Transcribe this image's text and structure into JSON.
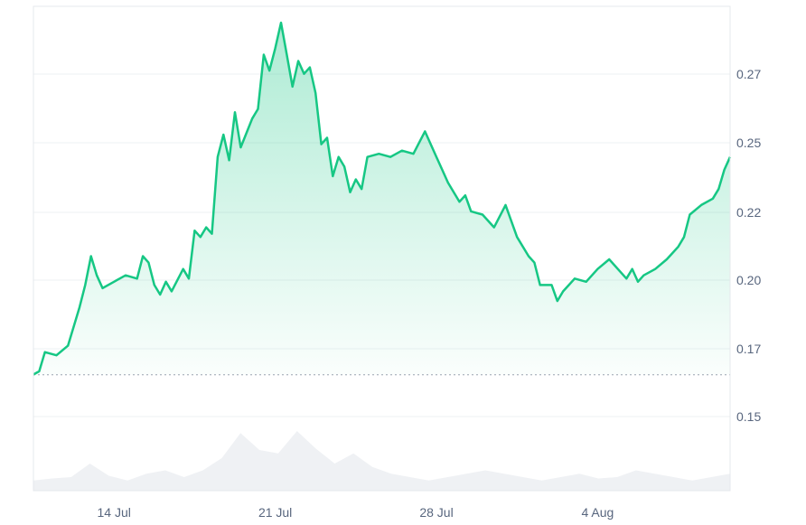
{
  "chart_data": {
    "type": "area",
    "title": "",
    "xlabel": "",
    "ylabel": "",
    "y_ticks": [
      "0.15",
      "0.17",
      "0.20",
      "0.22",
      "0.25",
      "0.27"
    ],
    "y_tick_values": [
      0.15,
      0.17,
      0.2,
      0.22,
      0.25,
      0.27
    ],
    "x_ticks": [
      "14 Jul",
      "21 Jul",
      "28 Jul",
      "4 Aug"
    ],
    "x_tick_dates": [
      "2024-07-14",
      "2024-07-21",
      "2024-07-28",
      "2024-08-04"
    ],
    "xlim": [
      "2024-07-10 12:00",
      "2024-08-09 18:00"
    ],
    "ylim": [
      0.1317,
      0.2831
    ],
    "baseline": 0.1679,
    "grid": true,
    "series": [
      {
        "color": "#16c784",
        "x": [
          "2024-07-10 12:00",
          "2024-07-10 18:00",
          "2024-07-11 00:00",
          "2024-07-11 12:00",
          "2024-07-12 00:00",
          "2024-07-12 12:00",
          "2024-07-12 18:00",
          "2024-07-13 00:00",
          "2024-07-13 06:00",
          "2024-07-13 12:00",
          "2024-07-14 00:00",
          "2024-07-14 12:00",
          "2024-07-15 00:00",
          "2024-07-15 06:00",
          "2024-07-15 12:00",
          "2024-07-15 18:00",
          "2024-07-16 00:00",
          "2024-07-16 06:00",
          "2024-07-16 12:00",
          "2024-07-17 00:00",
          "2024-07-17 06:00",
          "2024-07-17 12:00",
          "2024-07-17 18:00",
          "2024-07-18 00:00",
          "2024-07-18 06:00",
          "2024-07-18 12:00",
          "2024-07-18 18:00",
          "2024-07-19 00:00",
          "2024-07-19 06:00",
          "2024-07-19 12:00",
          "2024-07-20 00:00",
          "2024-07-20 06:00",
          "2024-07-20 12:00",
          "2024-07-20 18:00",
          "2024-07-21 00:00",
          "2024-07-21 06:00",
          "2024-07-21 12:00",
          "2024-07-21 18:00",
          "2024-07-22 00:00",
          "2024-07-22 06:00",
          "2024-07-22 12:00",
          "2024-07-22 18:00",
          "2024-07-23 00:00",
          "2024-07-23 06:00",
          "2024-07-23 12:00",
          "2024-07-23 18:00",
          "2024-07-24 00:00",
          "2024-07-24 06:00",
          "2024-07-24 12:00",
          "2024-07-24 18:00",
          "2024-07-25 00:00",
          "2024-07-25 12:00",
          "2024-07-26 00:00",
          "2024-07-26 12:00",
          "2024-07-27 00:00",
          "2024-07-27 12:00",
          "2024-07-28 00:00",
          "2024-07-28 06:00",
          "2024-07-28 12:00",
          "2024-07-29 00:00",
          "2024-07-29 06:00",
          "2024-07-29 12:00",
          "2024-07-30 00:00",
          "2024-07-30 12:00",
          "2024-07-31 00:00",
          "2024-07-31 12:00",
          "2024-08-01 00:00",
          "2024-08-01 06:00",
          "2024-08-01 12:00",
          "2024-08-02 00:00",
          "2024-08-02 06:00",
          "2024-08-02 12:00",
          "2024-08-02 18:00",
          "2024-08-03 00:00",
          "2024-08-03 12:00",
          "2024-08-04 00:00",
          "2024-08-04 12:00",
          "2024-08-05 00:00",
          "2024-08-05 06:00",
          "2024-08-05 12:00",
          "2024-08-05 18:00",
          "2024-08-06 00:00",
          "2024-08-06 12:00",
          "2024-08-07 00:00",
          "2024-08-07 06:00",
          "2024-08-07 12:00",
          "2024-08-07 18:00",
          "2024-08-08 00:00",
          "2024-08-08 12:00",
          "2024-08-09 00:00",
          "2024-08-09 06:00",
          "2024-08-09 12:00",
          "2024-08-09 18:00"
        ],
        "y": [
          0.168,
          0.169,
          0.175,
          0.174,
          0.177,
          0.189,
          0.196,
          0.205,
          0.199,
          0.195,
          0.197,
          0.199,
          0.198,
          0.205,
          0.203,
          0.196,
          0.193,
          0.197,
          0.194,
          0.201,
          0.198,
          0.213,
          0.211,
          0.214,
          0.212,
          0.236,
          0.243,
          0.235,
          0.25,
          0.239,
          0.248,
          0.251,
          0.268,
          0.263,
          0.27,
          0.278,
          0.268,
          0.258,
          0.266,
          0.262,
          0.264,
          0.256,
          0.24,
          0.242,
          0.23,
          0.236,
          0.233,
          0.225,
          0.229,
          0.226,
          0.236,
          0.237,
          0.236,
          0.238,
          0.237,
          0.244,
          0.236,
          0.232,
          0.228,
          0.222,
          0.224,
          0.219,
          0.218,
          0.214,
          0.221,
          0.211,
          0.205,
          0.203,
          0.196,
          0.196,
          0.191,
          0.194,
          0.196,
          0.198,
          0.197,
          0.201,
          0.204,
          0.2,
          0.198,
          0.201,
          0.197,
          0.199,
          0.201,
          0.204,
          0.206,
          0.208,
          0.211,
          0.218,
          0.221,
          0.223,
          0.226,
          0.232,
          0.236
        ]
      }
    ],
    "volume": {
      "color": "#eff1f4",
      "values": [
        0.15,
        0.18,
        0.2,
        0.4,
        0.22,
        0.15,
        0.25,
        0.3,
        0.2,
        0.3,
        0.48,
        0.85,
        0.6,
        0.55,
        0.88,
        0.62,
        0.4,
        0.55,
        0.35,
        0.25,
        0.2,
        0.15,
        0.2,
        0.25,
        0.3,
        0.25,
        0.2,
        0.15,
        0.2,
        0.25,
        0.18,
        0.2,
        0.3,
        0.25,
        0.2,
        0.15,
        0.2,
        0.25
      ]
    }
  }
}
